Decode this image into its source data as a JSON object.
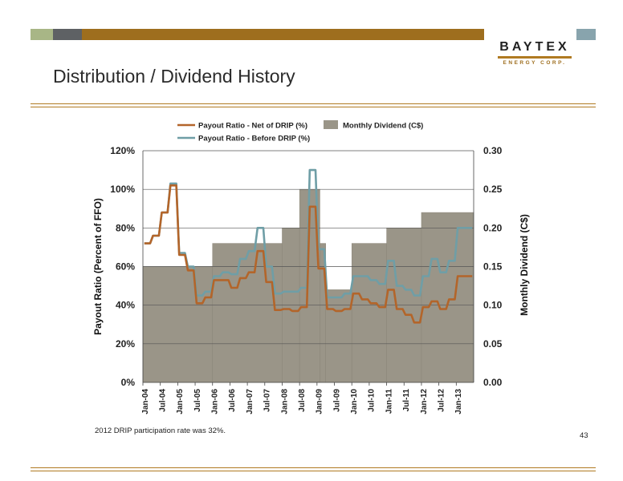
{
  "header": {
    "logo_main": "BAYTEX",
    "logo_sub": "ENERGY CORP."
  },
  "page_title": "Distribution / Dividend History",
  "footnote": "2012 DRIP participation rate was 32%.",
  "page_number": "43",
  "colors": {
    "net_line": "#b3652a",
    "before_line": "#6f9ea6",
    "dividend_fill": "#9a9588",
    "accent_gold": "#9e6e1e"
  },
  "chart_data": {
    "type": "line",
    "title": "",
    "ylabel": "Payout Ratio (Percent of FFO)",
    "y2label": "Monthly Dividend (C$)",
    "ylim": [
      0,
      120
    ],
    "y2lim": [
      0,
      0.3
    ],
    "y_ticks": [
      "0%",
      "20%",
      "40%",
      "60%",
      "80%",
      "100%",
      "120%"
    ],
    "y2_ticks": [
      "0.00",
      "0.05",
      "0.10",
      "0.15",
      "0.20",
      "0.25",
      "0.30"
    ],
    "x_ticks": [
      "Jan-04",
      "Jul-04",
      "Jan-05",
      "Jul-05",
      "Jan-06",
      "Jul-06",
      "Jan-07",
      "Jul-07",
      "Jan-08",
      "Jul-08",
      "Jan-09",
      "Jul-09",
      "Jan-10",
      "Jul-10",
      "Jan-11",
      "Jul-11",
      "Jan-12",
      "Jul-12",
      "Jan-13"
    ],
    "x_range": [
      "Jan-04",
      "Jun-13"
    ],
    "grid": true,
    "legend": {
      "position": "top",
      "items": [
        "Payout Ratio - Net of DRIP (%)",
        "Monthly Dividend (C$)",
        "Payout Ratio - Before DRIP (%)"
      ]
    },
    "dividend_steps": [
      {
        "start": "Jan-04",
        "end": "Dec-05",
        "value": 0.15
      },
      {
        "start": "Jan-06",
        "end": "Dec-07",
        "value": 0.18
      },
      {
        "start": "Jan-08",
        "end": "Jun-08",
        "value": 0.2
      },
      {
        "start": "Jul-08",
        "end": "Jan-09",
        "value": 0.25
      },
      {
        "start": "Feb-09",
        "end": "Mar-09",
        "value": 0.18
      },
      {
        "start": "Apr-09",
        "end": "Dec-09",
        "value": 0.12
      },
      {
        "start": "Jan-10",
        "end": "Dec-10",
        "value": 0.18
      },
      {
        "start": "Jan-11",
        "end": "Dec-11",
        "value": 0.2
      },
      {
        "start": "Jan-12",
        "end": "Jun-13",
        "value": 0.22
      }
    ],
    "series": [
      {
        "name": "Payout Ratio - Net of DRIP (%)",
        "points": [
          [
            "Jan-04",
            72
          ],
          [
            "Mar-04",
            72
          ],
          [
            "Apr-04",
            76
          ],
          [
            "Jun-04",
            76
          ],
          [
            "Jul-04",
            88
          ],
          [
            "Sep-04",
            88
          ],
          [
            "Oct-04",
            102
          ],
          [
            "Dec-04",
            102
          ],
          [
            "Jan-05",
            66
          ],
          [
            "Mar-05",
            66
          ],
          [
            "Apr-05",
            58
          ],
          [
            "Jun-05",
            58
          ],
          [
            "Jul-05",
            41
          ],
          [
            "Sep-05",
            41
          ],
          [
            "Oct-05",
            44
          ],
          [
            "Dec-05",
            44
          ],
          [
            "Jan-06",
            53
          ],
          [
            "Mar-06",
            53
          ],
          [
            "Apr-06",
            53
          ],
          [
            "Jun-06",
            53
          ],
          [
            "Jul-06",
            49
          ],
          [
            "Sep-06",
            49
          ],
          [
            "Oct-06",
            54
          ],
          [
            "Dec-06",
            54
          ],
          [
            "Jan-07",
            57
          ],
          [
            "Mar-07",
            57
          ],
          [
            "Apr-07",
            68
          ],
          [
            "Jun-07",
            68
          ],
          [
            "Jul-07",
            52
          ],
          [
            "Sep-07",
            52
          ],
          [
            "Oct-07",
            37.5
          ],
          [
            "Dec-07",
            37.5
          ],
          [
            "Jan-08",
            38
          ],
          [
            "Mar-08",
            38
          ],
          [
            "Apr-08",
            37
          ],
          [
            "Jun-08",
            37
          ],
          [
            "Jul-08",
            39
          ],
          [
            "Sep-08",
            39
          ],
          [
            "Oct-08",
            91
          ],
          [
            "Dec-08",
            91
          ],
          [
            "Jan-09",
            59
          ],
          [
            "Mar-09",
            59
          ],
          [
            "Apr-09",
            38
          ],
          [
            "Jun-09",
            38
          ],
          [
            "Jul-09",
            37
          ],
          [
            "Sep-09",
            37
          ],
          [
            "Oct-09",
            38
          ],
          [
            "Dec-09",
            38
          ],
          [
            "Jan-10",
            46
          ],
          [
            "Mar-10",
            46
          ],
          [
            "Apr-10",
            43
          ],
          [
            "Jun-10",
            43
          ],
          [
            "Jul-10",
            41
          ],
          [
            "Sep-10",
            41
          ],
          [
            "Oct-10",
            39
          ],
          [
            "Dec-10",
            39
          ],
          [
            "Jan-11",
            48
          ],
          [
            "Mar-11",
            48
          ],
          [
            "Apr-11",
            38
          ],
          [
            "Jun-11",
            38
          ],
          [
            "Jul-11",
            35
          ],
          [
            "Sep-11",
            35
          ],
          [
            "Oct-11",
            31
          ],
          [
            "Dec-11",
            31
          ],
          [
            "Jan-12",
            39
          ],
          [
            "Mar-12",
            39
          ],
          [
            "Apr-12",
            42
          ],
          [
            "Jun-12",
            42
          ],
          [
            "Jul-12",
            38
          ],
          [
            "Sep-12",
            38
          ],
          [
            "Oct-12",
            43
          ],
          [
            "Dec-12",
            43
          ],
          [
            "Jan-13",
            55
          ],
          [
            "Jun-13",
            55
          ]
        ]
      },
      {
        "name": "Payout Ratio - Before DRIP (%)",
        "points": [
          [
            "Jan-04",
            72
          ],
          [
            "Mar-04",
            72
          ],
          [
            "Apr-04",
            76
          ],
          [
            "Jun-04",
            76
          ],
          [
            "Jul-04",
            88
          ],
          [
            "Sep-04",
            88
          ],
          [
            "Oct-04",
            103
          ],
          [
            "Dec-04",
            103
          ],
          [
            "Jan-05",
            67
          ],
          [
            "Mar-05",
            67
          ],
          [
            "Apr-05",
            60
          ],
          [
            "Jun-05",
            60
          ],
          [
            "Jul-05",
            45
          ],
          [
            "Sep-05",
            45
          ],
          [
            "Oct-05",
            47
          ],
          [
            "Dec-05",
            47
          ],
          [
            "Jan-06",
            55
          ],
          [
            "Mar-06",
            55
          ],
          [
            "Apr-06",
            57
          ],
          [
            "Jun-06",
            57
          ],
          [
            "Jul-06",
            56
          ],
          [
            "Sep-06",
            56
          ],
          [
            "Oct-06",
            64
          ],
          [
            "Dec-06",
            64
          ],
          [
            "Jan-07",
            68
          ],
          [
            "Mar-07",
            68
          ],
          [
            "Apr-07",
            80
          ],
          [
            "Jun-07",
            80
          ],
          [
            "Jul-07",
            60
          ],
          [
            "Sep-07",
            60
          ],
          [
            "Oct-07",
            46
          ],
          [
            "Dec-07",
            46
          ],
          [
            "Jan-08",
            47
          ],
          [
            "Mar-08",
            47
          ],
          [
            "Apr-08",
            47
          ],
          [
            "Jun-08",
            47
          ],
          [
            "Jul-08",
            49
          ],
          [
            "Sep-08",
            49
          ],
          [
            "Oct-08",
            110
          ],
          [
            "Dec-08",
            110
          ],
          [
            "Jan-09",
            69
          ],
          [
            "Mar-09",
            69
          ],
          [
            "Apr-09",
            44
          ],
          [
            "Jun-09",
            44
          ],
          [
            "Jul-09",
            44
          ],
          [
            "Sep-09",
            44
          ],
          [
            "Oct-09",
            46
          ],
          [
            "Dec-09",
            46
          ],
          [
            "Jan-10",
            55
          ],
          [
            "Mar-10",
            55
          ],
          [
            "Apr-10",
            55
          ],
          [
            "Jun-10",
            55
          ],
          [
            "Jul-10",
            53
          ],
          [
            "Sep-10",
            53
          ],
          [
            "Oct-10",
            51
          ],
          [
            "Dec-10",
            51
          ],
          [
            "Jan-11",
            63
          ],
          [
            "Mar-11",
            63
          ],
          [
            "Apr-11",
            50
          ],
          [
            "Jun-11",
            50
          ],
          [
            "Jul-11",
            48
          ],
          [
            "Sep-11",
            48
          ],
          [
            "Oct-11",
            45
          ],
          [
            "Dec-11",
            45
          ],
          [
            "Jan-12",
            55
          ],
          [
            "Mar-12",
            55
          ],
          [
            "Apr-12",
            64
          ],
          [
            "Jun-12",
            64
          ],
          [
            "Jul-12",
            57
          ],
          [
            "Sep-12",
            57
          ],
          [
            "Oct-12",
            63
          ],
          [
            "Dec-12",
            63
          ],
          [
            "Jan-13",
            80
          ],
          [
            "Jun-13",
            80
          ]
        ]
      }
    ]
  }
}
